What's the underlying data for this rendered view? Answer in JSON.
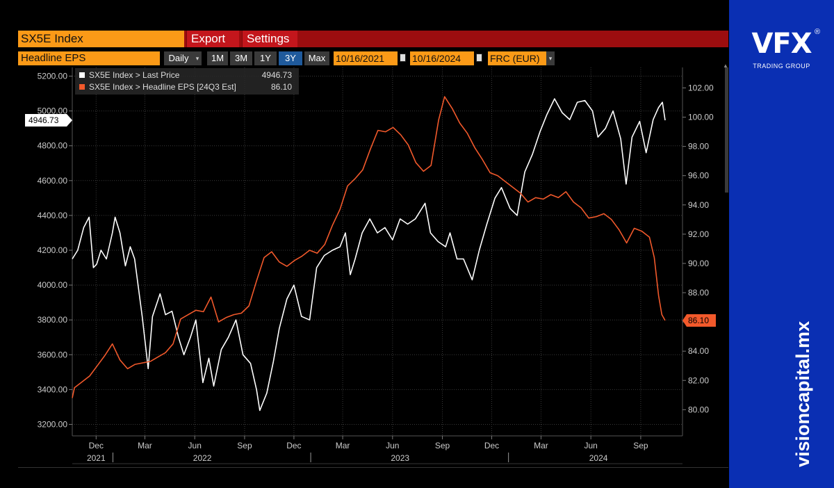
{
  "header": {
    "ticker": "SX5E Index",
    "export_label": "Export",
    "settings_label": "Settings"
  },
  "toolbar": {
    "field": "Headline EPS",
    "frequency": "Daily",
    "ranges": [
      "1M",
      "3M",
      "1Y",
      "3Y",
      "Max"
    ],
    "active_range": "3Y",
    "start_date": "10/16/2021",
    "end_date": "10/16/2024",
    "currency": "FRC (EUR)"
  },
  "legend": {
    "items": [
      {
        "name": "SX5E Index > Last Price",
        "value": "4946.73",
        "color": "#ffffff"
      },
      {
        "name": "SX5E Index > Headline EPS [24Q3 Est]",
        "value": "86.10",
        "color": "#f2592b"
      }
    ]
  },
  "brand": {
    "logo": "VFX",
    "registered": "®",
    "subtitle": "TRADING GROUP",
    "url": "visioncapital.mx"
  },
  "chart_data": {
    "type": "line",
    "x_range": [
      "2021-10-18",
      "2024-10-16"
    ],
    "left_axis": {
      "ticks": [
        "3200.00",
        "3400.00",
        "3600.00",
        "3800.00",
        "4000.00",
        "4200.00",
        "4400.00",
        "4600.00",
        "4800.00",
        "5000.00",
        "5200.00"
      ],
      "ylim": [
        3150,
        5250
      ]
    },
    "right_axis": {
      "ticks": [
        "80.00",
        "82.00",
        "84.00",
        "86.00",
        "88.00",
        "90.00",
        "92.00",
        "94.00",
        "96.00",
        "98.00",
        "100.00",
        "102.00"
      ],
      "ylim": [
        78.4,
        103.4
      ]
    },
    "x_ticks": [
      {
        "date": "2021-12-01",
        "label": "Dec"
      },
      {
        "date": "2022-03-01",
        "label": "Mar"
      },
      {
        "date": "2022-06-01",
        "label": "Jun"
      },
      {
        "date": "2022-09-01",
        "label": "Sep"
      },
      {
        "date": "2022-12-01",
        "label": "Dec"
      },
      {
        "date": "2023-03-01",
        "label": "Mar"
      },
      {
        "date": "2023-06-01",
        "label": "Jun"
      },
      {
        "date": "2023-09-01",
        "label": "Sep"
      },
      {
        "date": "2023-12-01",
        "label": "Dec"
      },
      {
        "date": "2024-03-01",
        "label": "Mar"
      },
      {
        "date": "2024-06-01",
        "label": "Jun"
      },
      {
        "date": "2024-09-01",
        "label": "Sep"
      }
    ],
    "years": [
      {
        "date": "2021-12-01",
        "label": "2021"
      },
      {
        "date": "2022-06-15",
        "label": "2022"
      },
      {
        "date": "2023-06-15",
        "label": "2023"
      },
      {
        "date": "2024-06-15",
        "label": "2024"
      }
    ],
    "year_separators": [
      "2022-01-01",
      "2023-01-01",
      "2024-01-01"
    ],
    "series": [
      {
        "name": "SX5E Index > Last Price",
        "axis": "left",
        "color": "#ffffff",
        "last_label": "4946.73",
        "points": [
          [
            "2021-10-18",
            4150
          ],
          [
            "2021-10-28",
            4200
          ],
          [
            "2021-11-08",
            4330
          ],
          [
            "2021-11-18",
            4390
          ],
          [
            "2021-11-26",
            4100
          ],
          [
            "2021-12-02",
            4120
          ],
          [
            "2021-12-10",
            4200
          ],
          [
            "2021-12-20",
            4150
          ],
          [
            "2021-12-31",
            4300
          ],
          [
            "2022-01-05",
            4390
          ],
          [
            "2022-01-14",
            4300
          ],
          [
            "2022-01-24",
            4110
          ],
          [
            "2022-02-02",
            4220
          ],
          [
            "2022-02-10",
            4150
          ],
          [
            "2022-02-24",
            3820
          ],
          [
            "2022-03-07",
            3520
          ],
          [
            "2022-03-15",
            3820
          ],
          [
            "2022-03-29",
            3950
          ],
          [
            "2022-04-08",
            3830
          ],
          [
            "2022-04-20",
            3850
          ],
          [
            "2022-05-02",
            3700
          ],
          [
            "2022-05-12",
            3600
          ],
          [
            "2022-05-24",
            3700
          ],
          [
            "2022-06-03",
            3800
          ],
          [
            "2022-06-16",
            3440
          ],
          [
            "2022-06-27",
            3580
          ],
          [
            "2022-07-06",
            3420
          ],
          [
            "2022-07-20",
            3630
          ],
          [
            "2022-08-02",
            3700
          ],
          [
            "2022-08-16",
            3800
          ],
          [
            "2022-08-29",
            3600
          ],
          [
            "2022-09-12",
            3550
          ],
          [
            "2022-09-23",
            3400
          ],
          [
            "2022-09-29",
            3280
          ],
          [
            "2022-10-12",
            3380
          ],
          [
            "2022-10-24",
            3560
          ],
          [
            "2022-11-04",
            3750
          ],
          [
            "2022-11-18",
            3920
          ],
          [
            "2022-12-01",
            4000
          ],
          [
            "2022-12-15",
            3820
          ],
          [
            "2022-12-30",
            3800
          ],
          [
            "2023-01-12",
            4100
          ],
          [
            "2023-01-26",
            4170
          ],
          [
            "2023-02-10",
            4200
          ],
          [
            "2023-02-24",
            4220
          ],
          [
            "2023-03-06",
            4300
          ],
          [
            "2023-03-15",
            4060
          ],
          [
            "2023-03-24",
            4150
          ],
          [
            "2023-04-06",
            4300
          ],
          [
            "2023-04-20",
            4380
          ],
          [
            "2023-05-04",
            4300
          ],
          [
            "2023-05-18",
            4330
          ],
          [
            "2023-06-01",
            4260
          ],
          [
            "2023-06-15",
            4380
          ],
          [
            "2023-06-29",
            4350
          ],
          [
            "2023-07-13",
            4380
          ],
          [
            "2023-07-31",
            4470
          ],
          [
            "2023-08-10",
            4300
          ],
          [
            "2023-08-24",
            4250
          ],
          [
            "2023-09-07",
            4220
          ],
          [
            "2023-09-15",
            4300
          ],
          [
            "2023-09-28",
            4150
          ],
          [
            "2023-10-10",
            4150
          ],
          [
            "2023-10-26",
            4030
          ],
          [
            "2023-11-08",
            4200
          ],
          [
            "2023-11-22",
            4350
          ],
          [
            "2023-12-07",
            4500
          ],
          [
            "2023-12-19",
            4560
          ],
          [
            "2024-01-04",
            4440
          ],
          [
            "2024-01-17",
            4400
          ],
          [
            "2024-01-31",
            4650
          ],
          [
            "2024-02-14",
            4750
          ],
          [
            "2024-02-28",
            4880
          ],
          [
            "2024-03-12",
            4980
          ],
          [
            "2024-03-26",
            5070
          ],
          [
            "2024-04-09",
            4990
          ],
          [
            "2024-04-23",
            4950
          ],
          [
            "2024-05-07",
            5050
          ],
          [
            "2024-05-21",
            5060
          ],
          [
            "2024-06-04",
            5000
          ],
          [
            "2024-06-14",
            4850
          ],
          [
            "2024-06-28",
            4900
          ],
          [
            "2024-07-12",
            5000
          ],
          [
            "2024-07-26",
            4840
          ],
          [
            "2024-08-05",
            4580
          ],
          [
            "2024-08-16",
            4850
          ],
          [
            "2024-08-30",
            4940
          ],
          [
            "2024-09-11",
            4760
          ],
          [
            "2024-09-24",
            4950
          ],
          [
            "2024-10-04",
            5020
          ],
          [
            "2024-10-11",
            5050
          ],
          [
            "2024-10-16",
            4946.73
          ]
        ]
      },
      {
        "name": "SX5E Index > Headline EPS [24Q3 Est]",
        "axis": "right",
        "color": "#f2592b",
        "last_label": "86.10",
        "points": [
          [
            "2021-10-18",
            80.8
          ],
          [
            "2021-10-22",
            81.5
          ],
          [
            "2021-11-05",
            81.9
          ],
          [
            "2021-11-19",
            82.3
          ],
          [
            "2021-12-03",
            83.0
          ],
          [
            "2021-12-17",
            83.7
          ],
          [
            "2021-12-31",
            84.5
          ],
          [
            "2022-01-14",
            83.4
          ],
          [
            "2022-01-28",
            82.8
          ],
          [
            "2022-02-11",
            83.1
          ],
          [
            "2022-02-25",
            83.2
          ],
          [
            "2022-03-11",
            83.3
          ],
          [
            "2022-03-25",
            83.6
          ],
          [
            "2022-04-08",
            83.9
          ],
          [
            "2022-04-22",
            84.5
          ],
          [
            "2022-05-06",
            86.2
          ],
          [
            "2022-05-20",
            86.5
          ],
          [
            "2022-06-03",
            86.8
          ],
          [
            "2022-06-17",
            86.7
          ],
          [
            "2022-07-01",
            87.7
          ],
          [
            "2022-07-15",
            86.0
          ],
          [
            "2022-07-29",
            86.3
          ],
          [
            "2022-08-12",
            86.5
          ],
          [
            "2022-08-26",
            86.6
          ],
          [
            "2022-09-09",
            87.1
          ],
          [
            "2022-09-23",
            88.8
          ],
          [
            "2022-10-07",
            90.4
          ],
          [
            "2022-10-21",
            90.8
          ],
          [
            "2022-11-04",
            90.1
          ],
          [
            "2022-11-18",
            89.8
          ],
          [
            "2022-12-02",
            90.2
          ],
          [
            "2022-12-16",
            90.5
          ],
          [
            "2022-12-30",
            90.9
          ],
          [
            "2023-01-13",
            90.7
          ],
          [
            "2023-01-27",
            91.3
          ],
          [
            "2023-02-10",
            92.6
          ],
          [
            "2023-02-24",
            93.7
          ],
          [
            "2023-03-10",
            95.3
          ],
          [
            "2023-03-24",
            95.8
          ],
          [
            "2023-04-07",
            96.4
          ],
          [
            "2023-04-21",
            97.8
          ],
          [
            "2023-05-05",
            99.1
          ],
          [
            "2023-05-19",
            99.0
          ],
          [
            "2023-06-02",
            99.3
          ],
          [
            "2023-06-16",
            98.8
          ],
          [
            "2023-06-30",
            98.1
          ],
          [
            "2023-07-14",
            96.9
          ],
          [
            "2023-07-28",
            96.3
          ],
          [
            "2023-08-11",
            96.7
          ],
          [
            "2023-08-25",
            99.8
          ],
          [
            "2023-09-05",
            101.4
          ],
          [
            "2023-09-19",
            100.6
          ],
          [
            "2023-10-03",
            99.6
          ],
          [
            "2023-10-17",
            98.9
          ],
          [
            "2023-10-31",
            97.9
          ],
          [
            "2023-11-14",
            97.1
          ],
          [
            "2023-11-28",
            96.2
          ],
          [
            "2023-12-12",
            96.0
          ],
          [
            "2023-12-26",
            95.6
          ],
          [
            "2024-01-09",
            95.2
          ],
          [
            "2024-01-23",
            94.8
          ],
          [
            "2024-02-06",
            94.2
          ],
          [
            "2024-02-20",
            94.5
          ],
          [
            "2024-03-05",
            94.4
          ],
          [
            "2024-03-19",
            94.7
          ],
          [
            "2024-04-02",
            94.5
          ],
          [
            "2024-04-16",
            94.9
          ],
          [
            "2024-04-30",
            94.2
          ],
          [
            "2024-05-14",
            93.8
          ],
          [
            "2024-05-28",
            93.1
          ],
          [
            "2024-06-11",
            93.2
          ],
          [
            "2024-06-25",
            93.4
          ],
          [
            "2024-07-09",
            93.0
          ],
          [
            "2024-07-23",
            92.3
          ],
          [
            "2024-08-06",
            91.4
          ],
          [
            "2024-08-20",
            92.4
          ],
          [
            "2024-09-03",
            92.2
          ],
          [
            "2024-09-17",
            91.8
          ],
          [
            "2024-09-26",
            90.4
          ],
          [
            "2024-10-04",
            87.8
          ],
          [
            "2024-10-10",
            86.5
          ],
          [
            "2024-10-16",
            86.1
          ]
        ]
      }
    ]
  }
}
